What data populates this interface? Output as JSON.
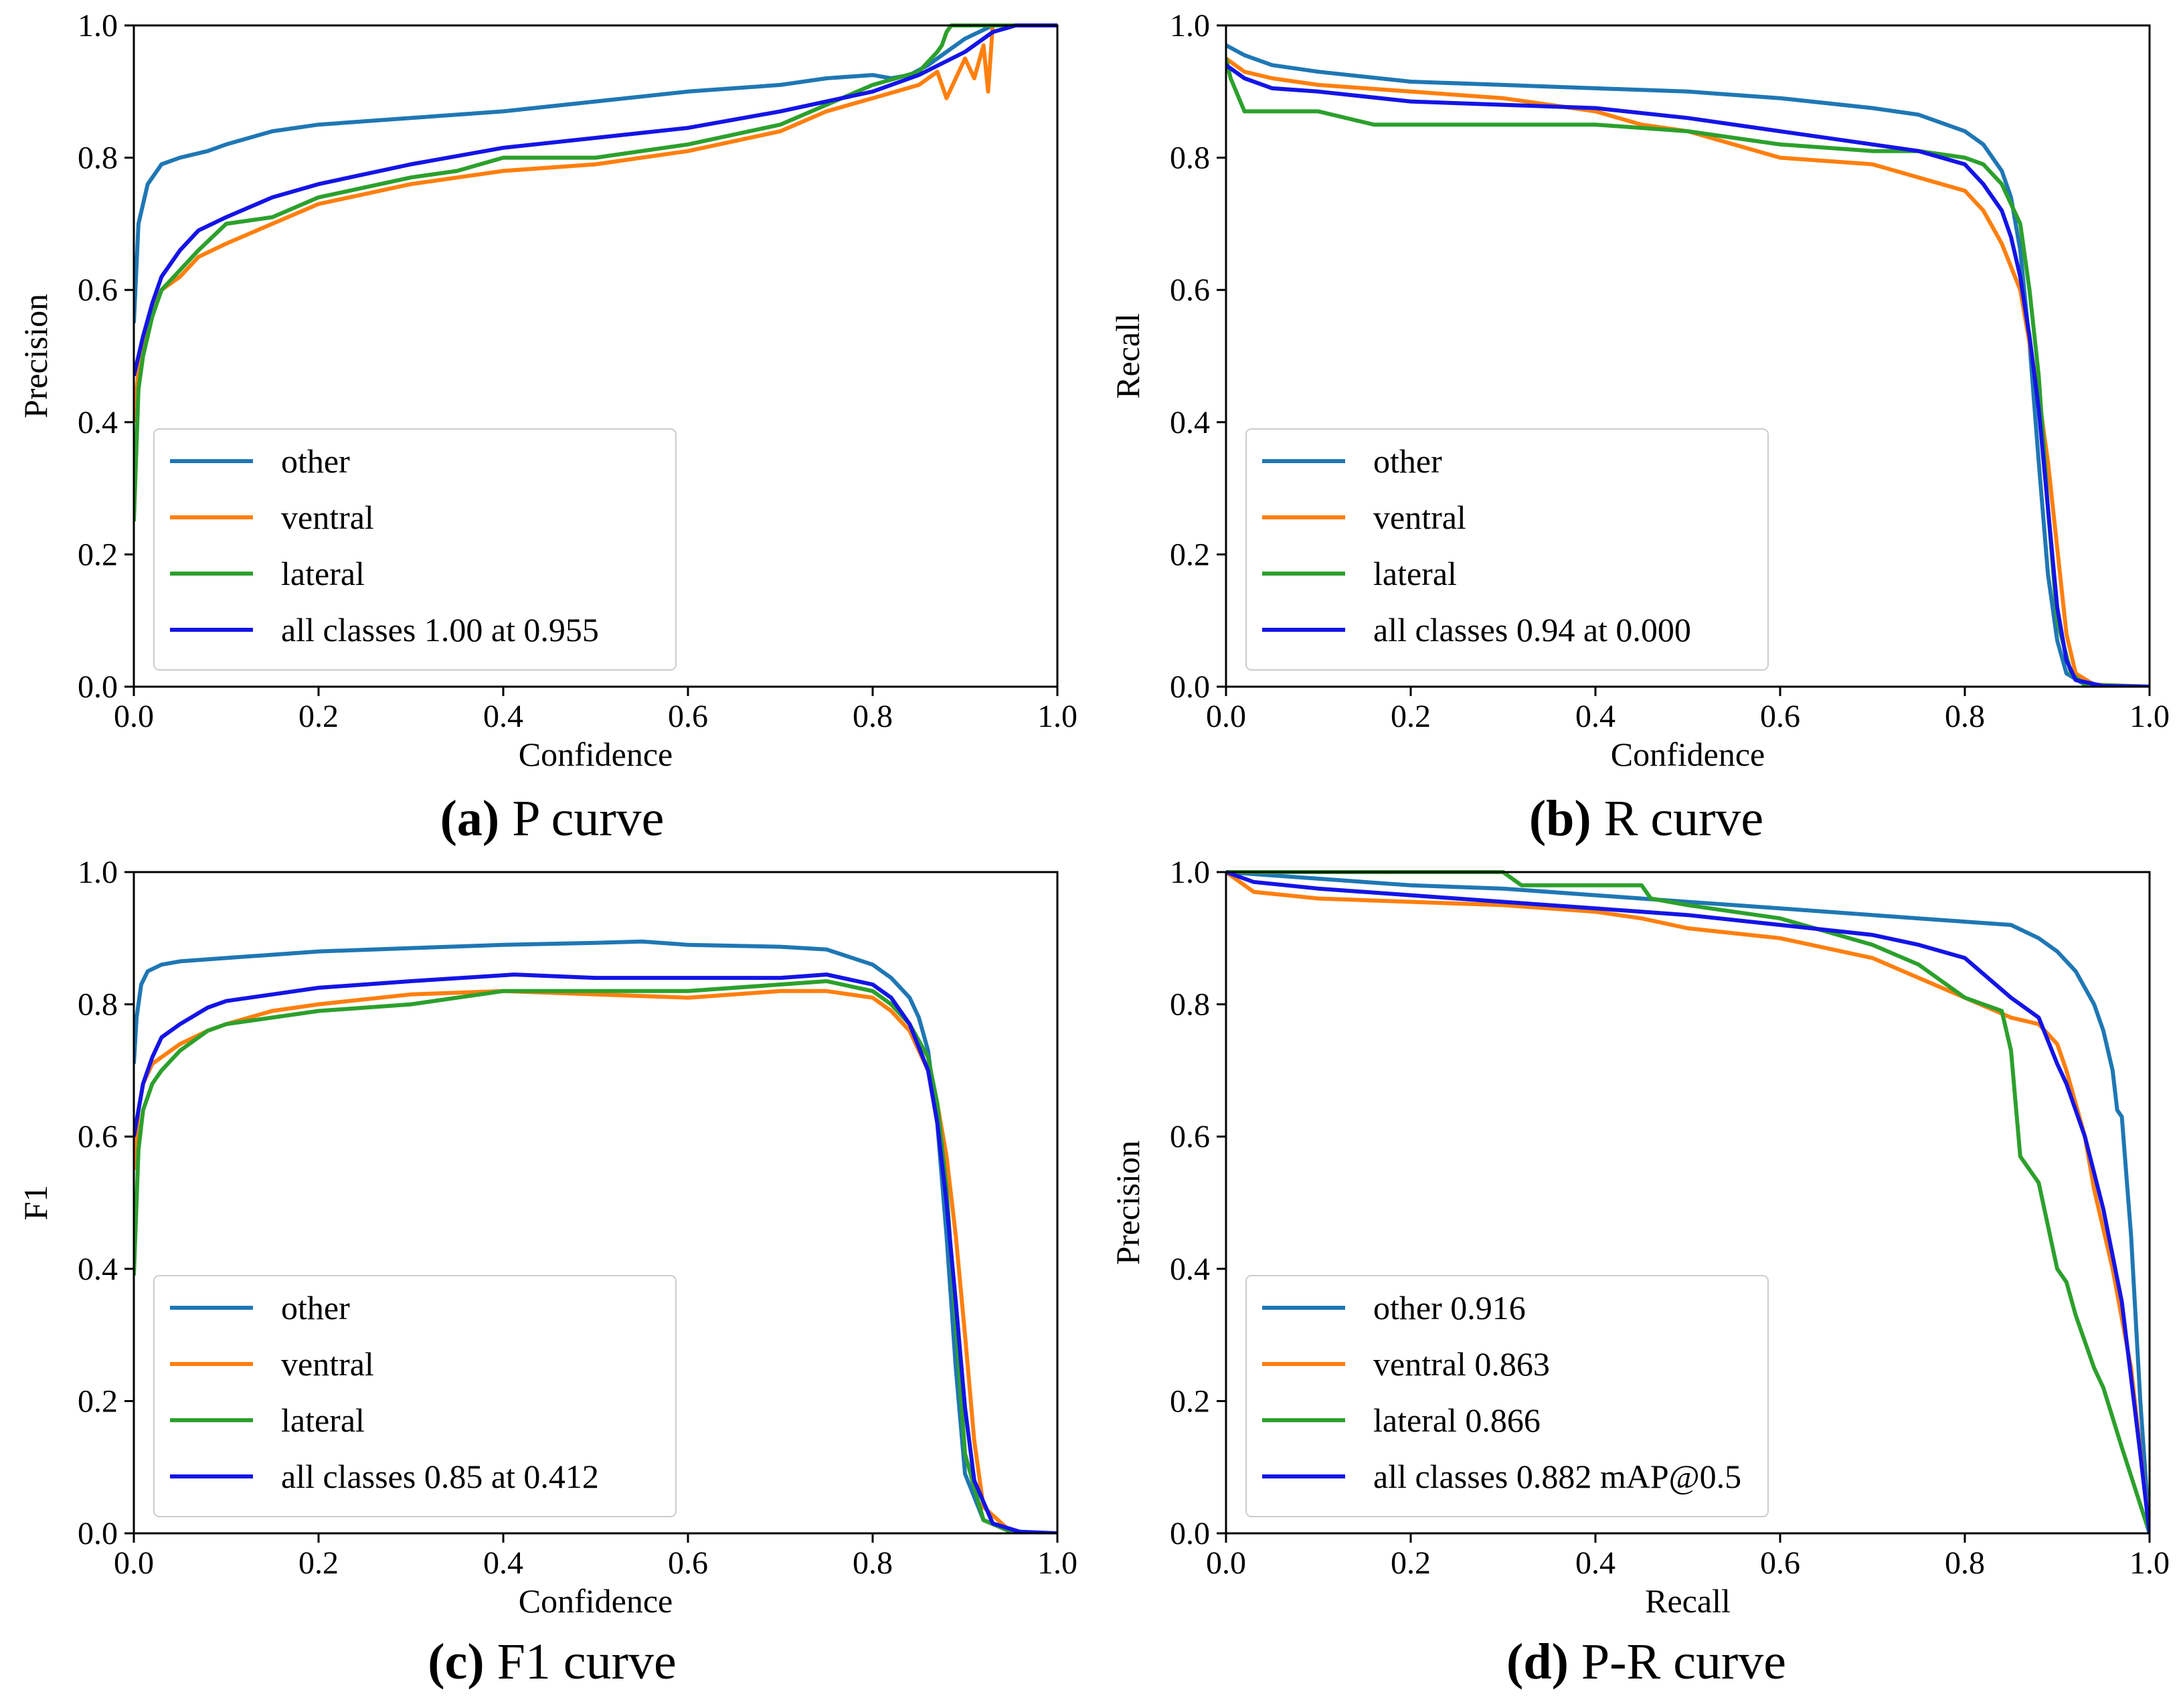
{
  "colors": {
    "other": "#1f77b4",
    "ventral": "#ff7f0e",
    "lateral": "#2ca02c",
    "all": "#1414e6"
  },
  "chart_data": [
    {
      "type": "line",
      "caption_label": "(a)",
      "caption_text": " P curve",
      "xlabel": "Confidence",
      "ylabel": "Precision",
      "xlim": [
        0,
        1
      ],
      "ylim": [
        0,
        1
      ],
      "xticks": [
        "0.0",
        "0.2",
        "0.4",
        "0.6",
        "0.8",
        "1.0"
      ],
      "yticks": [
        "0.0",
        "0.2",
        "0.4",
        "0.6",
        "0.8",
        "1.0"
      ],
      "legend_position": "lower-center",
      "series": [
        {
          "name": "other",
          "color_key": "other",
          "x": [
            0,
            0.005,
            0.015,
            0.03,
            0.05,
            0.08,
            0.1,
            0.15,
            0.2,
            0.3,
            0.4,
            0.5,
            0.6,
            0.7,
            0.75,
            0.8,
            0.82,
            0.84,
            0.86,
            0.88,
            0.9,
            0.93,
            0.95,
            1.0
          ],
          "y": [
            0.55,
            0.7,
            0.76,
            0.79,
            0.8,
            0.81,
            0.82,
            0.84,
            0.85,
            0.86,
            0.87,
            0.885,
            0.9,
            0.91,
            0.92,
            0.925,
            0.92,
            0.925,
            0.94,
            0.96,
            0.98,
            1.0,
            1.0,
            1.0
          ]
        },
        {
          "name": "ventral",
          "color_key": "ventral",
          "x": [
            0,
            0.005,
            0.01,
            0.02,
            0.03,
            0.05,
            0.07,
            0.1,
            0.15,
            0.2,
            0.3,
            0.4,
            0.5,
            0.6,
            0.7,
            0.75,
            0.8,
            0.85,
            0.87,
            0.88,
            0.9,
            0.91,
            0.92,
            0.925,
            0.93,
            1.0
          ],
          "y": [
            0.4,
            0.48,
            0.52,
            0.57,
            0.6,
            0.62,
            0.65,
            0.67,
            0.7,
            0.73,
            0.76,
            0.78,
            0.79,
            0.81,
            0.84,
            0.87,
            0.89,
            0.91,
            0.93,
            0.89,
            0.95,
            0.92,
            0.97,
            0.9,
            1.0,
            1.0
          ]
        },
        {
          "name": "lateral",
          "color_key": "lateral",
          "x": [
            0,
            0.005,
            0.01,
            0.02,
            0.03,
            0.05,
            0.07,
            0.1,
            0.15,
            0.2,
            0.3,
            0.35,
            0.4,
            0.5,
            0.55,
            0.6,
            0.7,
            0.75,
            0.8,
            0.85,
            0.87,
            0.875,
            0.88,
            0.885,
            1.0
          ],
          "y": [
            0.25,
            0.45,
            0.5,
            0.56,
            0.6,
            0.63,
            0.66,
            0.7,
            0.71,
            0.74,
            0.77,
            0.78,
            0.8,
            0.8,
            0.81,
            0.82,
            0.85,
            0.88,
            0.91,
            0.93,
            0.96,
            0.97,
            0.99,
            1.0,
            1.0
          ]
        },
        {
          "name": "all classes 1.00 at 0.955",
          "color_key": "all",
          "x": [
            0,
            0.005,
            0.01,
            0.02,
            0.03,
            0.05,
            0.07,
            0.1,
            0.15,
            0.2,
            0.3,
            0.4,
            0.5,
            0.6,
            0.7,
            0.8,
            0.85,
            0.9,
            0.93,
            0.955,
            1.0
          ],
          "y": [
            0.47,
            0.5,
            0.53,
            0.58,
            0.62,
            0.66,
            0.69,
            0.71,
            0.74,
            0.76,
            0.79,
            0.815,
            0.83,
            0.845,
            0.87,
            0.9,
            0.925,
            0.96,
            0.99,
            1.0,
            1.0
          ]
        }
      ]
    },
    {
      "type": "line",
      "caption_label": "(b)",
      "caption_text": " R curve",
      "xlabel": "Confidence",
      "ylabel": "Recall",
      "xlim": [
        0,
        1
      ],
      "ylim": [
        0,
        1
      ],
      "xticks": [
        "0.0",
        "0.2",
        "0.4",
        "0.6",
        "0.8",
        "1.0"
      ],
      "yticks": [
        "0.0",
        "0.2",
        "0.4",
        "0.6",
        "0.8",
        "1.0"
      ],
      "legend_position": "lower-center",
      "series": [
        {
          "name": "other",
          "color_key": "other",
          "x": [
            0,
            0.02,
            0.05,
            0.1,
            0.2,
            0.3,
            0.4,
            0.5,
            0.6,
            0.7,
            0.75,
            0.8,
            0.82,
            0.84,
            0.85,
            0.86,
            0.87,
            0.88,
            0.89,
            0.9,
            0.91,
            0.93,
            1.0
          ],
          "y": [
            0.97,
            0.955,
            0.94,
            0.93,
            0.915,
            0.91,
            0.905,
            0.9,
            0.89,
            0.875,
            0.865,
            0.84,
            0.82,
            0.78,
            0.74,
            0.66,
            0.52,
            0.34,
            0.17,
            0.07,
            0.02,
            0.003,
            0.0
          ]
        },
        {
          "name": "ventral",
          "color_key": "ventral",
          "x": [
            0,
            0.02,
            0.05,
            0.1,
            0.2,
            0.3,
            0.4,
            0.45,
            0.5,
            0.6,
            0.7,
            0.75,
            0.8,
            0.82,
            0.84,
            0.86,
            0.87,
            0.88,
            0.89,
            0.9,
            0.91,
            0.92,
            0.94,
            1.0
          ],
          "y": [
            0.95,
            0.93,
            0.92,
            0.91,
            0.9,
            0.89,
            0.87,
            0.85,
            0.84,
            0.8,
            0.79,
            0.77,
            0.75,
            0.72,
            0.67,
            0.6,
            0.52,
            0.44,
            0.34,
            0.21,
            0.08,
            0.02,
            0.003,
            0.0
          ]
        },
        {
          "name": "lateral",
          "color_key": "lateral",
          "x": [
            0,
            0.005,
            0.02,
            0.1,
            0.16,
            0.3,
            0.4,
            0.5,
            0.55,
            0.6,
            0.7,
            0.75,
            0.8,
            0.82,
            0.84,
            0.86,
            0.87,
            0.88,
            0.89,
            0.9,
            0.915,
            0.93,
            1.0
          ],
          "y": [
            0.95,
            0.92,
            0.87,
            0.87,
            0.85,
            0.85,
            0.85,
            0.84,
            0.83,
            0.82,
            0.81,
            0.81,
            0.8,
            0.79,
            0.76,
            0.7,
            0.6,
            0.47,
            0.27,
            0.1,
            0.02,
            0.003,
            0.0
          ]
        },
        {
          "name": "all classes 0.94 at 0.000",
          "color_key": "all",
          "x": [
            0,
            0.02,
            0.05,
            0.1,
            0.2,
            0.3,
            0.4,
            0.5,
            0.6,
            0.7,
            0.75,
            0.8,
            0.82,
            0.84,
            0.85,
            0.86,
            0.87,
            0.88,
            0.89,
            0.9,
            0.91,
            0.92,
            0.95,
            1.0
          ],
          "y": [
            0.94,
            0.92,
            0.905,
            0.9,
            0.885,
            0.88,
            0.875,
            0.86,
            0.84,
            0.82,
            0.81,
            0.79,
            0.76,
            0.72,
            0.68,
            0.62,
            0.53,
            0.42,
            0.27,
            0.12,
            0.04,
            0.01,
            0.001,
            0.0
          ]
        }
      ]
    },
    {
      "type": "line",
      "caption_label": "(c)",
      "caption_text": " F1 curve",
      "xlabel": "Confidence",
      "ylabel": "F1",
      "xlim": [
        0,
        1
      ],
      "ylim": [
        0,
        1
      ],
      "xticks": [
        "0.0",
        "0.2",
        "0.4",
        "0.6",
        "0.8",
        "1.0"
      ],
      "yticks": [
        "0.0",
        "0.2",
        "0.4",
        "0.6",
        "0.8",
        "1.0"
      ],
      "legend_position": "lower-center",
      "series": [
        {
          "name": "other",
          "color_key": "other",
          "x": [
            0,
            0.003,
            0.008,
            0.015,
            0.03,
            0.05,
            0.1,
            0.2,
            0.3,
            0.4,
            0.5,
            0.55,
            0.6,
            0.7,
            0.75,
            0.8,
            0.82,
            0.84,
            0.85,
            0.86,
            0.87,
            0.88,
            0.89,
            0.9,
            0.92,
            0.95,
            1.0
          ],
          "y": [
            0.71,
            0.78,
            0.83,
            0.85,
            0.86,
            0.865,
            0.87,
            0.88,
            0.885,
            0.89,
            0.893,
            0.895,
            0.89,
            0.887,
            0.883,
            0.86,
            0.84,
            0.81,
            0.78,
            0.73,
            0.62,
            0.45,
            0.25,
            0.09,
            0.02,
            0.003,
            0.0
          ]
        },
        {
          "name": "ventral",
          "color_key": "ventral",
          "x": [
            0,
            0.005,
            0.01,
            0.02,
            0.03,
            0.05,
            0.08,
            0.1,
            0.15,
            0.2,
            0.3,
            0.4,
            0.5,
            0.6,
            0.7,
            0.75,
            0.8,
            0.82,
            0.84,
            0.86,
            0.87,
            0.88,
            0.89,
            0.9,
            0.91,
            0.92,
            0.95,
            1.0
          ],
          "y": [
            0.55,
            0.64,
            0.68,
            0.71,
            0.72,
            0.74,
            0.76,
            0.77,
            0.79,
            0.8,
            0.815,
            0.82,
            0.815,
            0.81,
            0.82,
            0.82,
            0.81,
            0.79,
            0.76,
            0.7,
            0.65,
            0.57,
            0.45,
            0.3,
            0.14,
            0.04,
            0.002,
            0.0
          ]
        },
        {
          "name": "lateral",
          "color_key": "lateral",
          "x": [
            0,
            0.005,
            0.01,
            0.02,
            0.03,
            0.05,
            0.08,
            0.1,
            0.15,
            0.2,
            0.3,
            0.4,
            0.5,
            0.6,
            0.7,
            0.75,
            0.8,
            0.82,
            0.84,
            0.86,
            0.87,
            0.88,
            0.89,
            0.9,
            0.92,
            0.95,
            1.0
          ],
          "y": [
            0.39,
            0.58,
            0.64,
            0.68,
            0.7,
            0.73,
            0.76,
            0.77,
            0.78,
            0.79,
            0.8,
            0.82,
            0.82,
            0.82,
            0.83,
            0.835,
            0.82,
            0.8,
            0.77,
            0.72,
            0.65,
            0.52,
            0.32,
            0.12,
            0.02,
            0.002,
            0.0
          ]
        },
        {
          "name": "all classes 0.85 at 0.412",
          "color_key": "all",
          "x": [
            0,
            0.005,
            0.01,
            0.02,
            0.03,
            0.05,
            0.08,
            0.1,
            0.15,
            0.2,
            0.3,
            0.412,
            0.5,
            0.6,
            0.7,
            0.75,
            0.8,
            0.82,
            0.84,
            0.86,
            0.87,
            0.88,
            0.89,
            0.9,
            0.91,
            0.93,
            0.96,
            1.0
          ],
          "y": [
            0.6,
            0.64,
            0.68,
            0.72,
            0.75,
            0.77,
            0.795,
            0.805,
            0.815,
            0.825,
            0.835,
            0.845,
            0.84,
            0.84,
            0.84,
            0.845,
            0.83,
            0.81,
            0.77,
            0.7,
            0.62,
            0.5,
            0.35,
            0.19,
            0.08,
            0.015,
            0.002,
            0.0
          ]
        }
      ]
    },
    {
      "type": "line",
      "caption_label": "(d)",
      "caption_text": " P-R curve",
      "xlabel": "Recall",
      "ylabel": "Precision",
      "xlim": [
        0,
        1
      ],
      "ylim": [
        0,
        1
      ],
      "xticks": [
        "0.0",
        "0.2",
        "0.4",
        "0.6",
        "0.8",
        "1.0"
      ],
      "yticks": [
        "0.0",
        "0.2",
        "0.4",
        "0.6",
        "0.8",
        "1.0"
      ],
      "legend_position": "lower-center",
      "series": [
        {
          "name": "other 0.916",
          "color_key": "other",
          "x": [
            0,
            0.1,
            0.2,
            0.3,
            0.4,
            0.5,
            0.6,
            0.7,
            0.75,
            0.8,
            0.85,
            0.88,
            0.9,
            0.92,
            0.94,
            0.95,
            0.96,
            0.965,
            0.97,
            0.98,
            0.99,
            1.0
          ],
          "y": [
            1.0,
            0.99,
            0.98,
            0.975,
            0.965,
            0.955,
            0.945,
            0.935,
            0.93,
            0.925,
            0.92,
            0.9,
            0.88,
            0.85,
            0.8,
            0.76,
            0.7,
            0.64,
            0.63,
            0.45,
            0.2,
            0.0
          ]
        },
        {
          "name": "ventral 0.863",
          "color_key": "ventral",
          "x": [
            0,
            0.03,
            0.1,
            0.2,
            0.3,
            0.4,
            0.45,
            0.5,
            0.6,
            0.7,
            0.75,
            0.8,
            0.85,
            0.88,
            0.9,
            0.91,
            0.93,
            0.94,
            0.96,
            0.98,
            1.0
          ],
          "y": [
            1.0,
            0.97,
            0.96,
            0.955,
            0.95,
            0.94,
            0.93,
            0.915,
            0.9,
            0.87,
            0.84,
            0.81,
            0.78,
            0.77,
            0.74,
            0.7,
            0.6,
            0.52,
            0.4,
            0.25,
            0.0
          ]
        },
        {
          "name": "lateral 0.866",
          "color_key": "lateral",
          "x": [
            0,
            0.3,
            0.32,
            0.45,
            0.46,
            0.5,
            0.6,
            0.65,
            0.7,
            0.75,
            0.8,
            0.84,
            0.85,
            0.86,
            0.88,
            0.9,
            0.91,
            0.92,
            0.93,
            0.94,
            0.95,
            0.97,
            1.0
          ],
          "y": [
            1.0,
            1.0,
            0.98,
            0.98,
            0.96,
            0.95,
            0.93,
            0.91,
            0.89,
            0.86,
            0.81,
            0.79,
            0.73,
            0.57,
            0.53,
            0.4,
            0.38,
            0.33,
            0.29,
            0.25,
            0.22,
            0.13,
            0.0
          ]
        },
        {
          "name": "all classes 0.882 mAP@0.5",
          "color_key": "all",
          "x": [
            0,
            0.03,
            0.1,
            0.2,
            0.3,
            0.4,
            0.5,
            0.6,
            0.7,
            0.75,
            0.8,
            0.85,
            0.88,
            0.9,
            0.91,
            0.93,
            0.95,
            0.97,
            0.99,
            1.0
          ],
          "y": [
            1.0,
            0.985,
            0.975,
            0.965,
            0.955,
            0.945,
            0.935,
            0.92,
            0.905,
            0.89,
            0.87,
            0.81,
            0.78,
            0.71,
            0.68,
            0.6,
            0.49,
            0.35,
            0.12,
            0.0
          ]
        }
      ]
    }
  ]
}
